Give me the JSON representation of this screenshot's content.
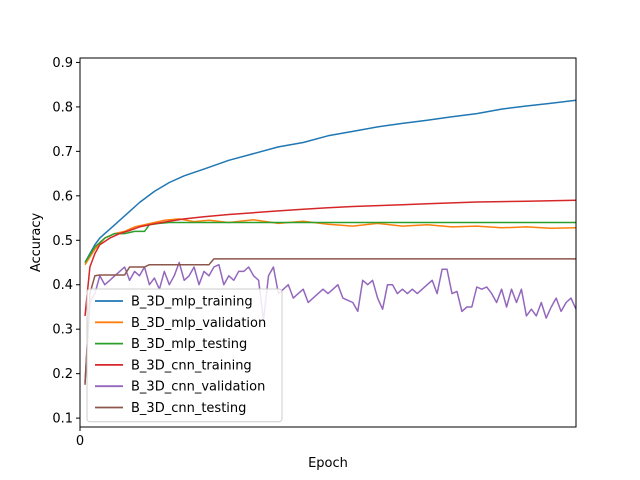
{
  "chart_data": {
    "type": "line",
    "title": "",
    "xlabel": "Epoch",
    "ylabel": "Accuracy",
    "xlim": [
      0,
      100
    ],
    "ylim": [
      0.08,
      0.91
    ],
    "x_ticks": [
      0
    ],
    "x_tick_labels": [
      "0"
    ],
    "y_ticks": [
      0.1,
      0.2,
      0.3,
      0.4,
      0.5,
      0.6,
      0.7,
      0.8,
      0.9
    ],
    "y_tick_labels": [
      "0.1",
      "0.2",
      "0.3",
      "0.4",
      "0.5",
      "0.6",
      "0.7",
      "0.8",
      "0.9"
    ],
    "grid": false,
    "legend_position": "lower-left",
    "series": [
      {
        "name": "B_3D_mlp_training",
        "color": "#1f77b4",
        "x": [
          1,
          2,
          3,
          4,
          5,
          6,
          8,
          10,
          12,
          15,
          18,
          21,
          25,
          30,
          35,
          40,
          45,
          50,
          55,
          60,
          65,
          70,
          75,
          80,
          85,
          90,
          95,
          100
        ],
        "y": [
          0.45,
          0.47,
          0.49,
          0.505,
          0.515,
          0.525,
          0.545,
          0.565,
          0.585,
          0.61,
          0.63,
          0.645,
          0.66,
          0.68,
          0.695,
          0.71,
          0.72,
          0.735,
          0.745,
          0.755,
          0.763,
          0.77,
          0.778,
          0.785,
          0.795,
          0.802,
          0.808,
          0.815
        ]
      },
      {
        "name": "B_3D_mlp_validation",
        "color": "#ff7f0e",
        "x": [
          1,
          3,
          5,
          7,
          9,
          11,
          13,
          15,
          17,
          20,
          23,
          26,
          30,
          35,
          40,
          45,
          50,
          55,
          60,
          65,
          70,
          75,
          80,
          85,
          90,
          95,
          100
        ],
        "y": [
          0.445,
          0.48,
          0.505,
          0.515,
          0.52,
          0.53,
          0.535,
          0.54,
          0.545,
          0.548,
          0.542,
          0.545,
          0.54,
          0.546,
          0.538,
          0.543,
          0.536,
          0.532,
          0.538,
          0.532,
          0.535,
          0.53,
          0.532,
          0.528,
          0.53,
          0.527,
          0.528
        ]
      },
      {
        "name": "B_3D_mlp_testing",
        "color": "#2ca02c",
        "x": [
          1,
          3,
          5,
          7,
          9,
          11,
          13,
          14,
          16,
          18,
          20,
          100
        ],
        "y": [
          0.45,
          0.485,
          0.505,
          0.515,
          0.515,
          0.52,
          0.52,
          0.535,
          0.538,
          0.54,
          0.54,
          0.54
        ]
      },
      {
        "name": "B_3D_cnn_training",
        "color": "#d62728",
        "x": [
          1,
          2,
          3,
          4,
          6,
          8,
          10,
          12,
          15,
          18,
          21,
          25,
          30,
          35,
          40,
          45,
          50,
          55,
          60,
          65,
          70,
          75,
          80,
          85,
          90,
          95,
          100
        ],
        "y": [
          0.33,
          0.44,
          0.47,
          0.49,
          0.505,
          0.515,
          0.522,
          0.53,
          0.537,
          0.543,
          0.548,
          0.553,
          0.558,
          0.562,
          0.566,
          0.57,
          0.573,
          0.576,
          0.578,
          0.58,
          0.582,
          0.584,
          0.586,
          0.587,
          0.588,
          0.589,
          0.59
        ]
      },
      {
        "name": "B_3D_cnn_validation",
        "color": "#9467bd",
        "x": [
          1,
          2,
          3,
          4,
          5,
          6,
          7,
          8,
          9,
          10,
          11,
          12,
          13,
          14,
          15,
          16,
          17,
          18,
          19,
          20,
          21,
          22,
          23,
          24,
          25,
          26,
          27,
          28,
          29,
          30,
          31,
          32,
          33,
          34,
          35,
          36,
          37,
          38,
          39,
          40,
          41,
          42,
          43,
          44,
          45,
          46,
          47,
          48,
          49,
          50,
          51,
          52,
          53,
          54,
          55,
          56,
          57,
          58,
          59,
          60,
          61,
          62,
          63,
          64,
          65,
          66,
          67,
          68,
          69,
          70,
          71,
          72,
          73,
          74,
          75,
          76,
          77,
          78,
          79,
          80,
          81,
          82,
          83,
          84,
          85,
          86,
          87,
          88,
          89,
          90,
          91,
          92,
          93,
          94,
          95,
          96,
          97,
          98,
          99,
          100
        ],
        "y": [
          0.18,
          0.36,
          0.38,
          0.42,
          0.4,
          0.41,
          0.42,
          0.43,
          0.44,
          0.41,
          0.43,
          0.42,
          0.44,
          0.4,
          0.415,
          0.39,
          0.43,
          0.4,
          0.42,
          0.45,
          0.41,
          0.42,
          0.44,
          0.4,
          0.43,
          0.42,
          0.44,
          0.445,
          0.4,
          0.42,
          0.41,
          0.43,
          0.43,
          0.44,
          0.42,
          0.41,
          0.32,
          0.42,
          0.44,
          0.38,
          0.39,
          0.4,
          0.37,
          0.38,
          0.39,
          0.36,
          0.37,
          0.38,
          0.39,
          0.38,
          0.39,
          0.4,
          0.37,
          0.365,
          0.36,
          0.34,
          0.41,
          0.4,
          0.41,
          0.37,
          0.345,
          0.4,
          0.4,
          0.38,
          0.39,
          0.38,
          0.39,
          0.38,
          0.39,
          0.4,
          0.41,
          0.38,
          0.435,
          0.435,
          0.38,
          0.385,
          0.34,
          0.35,
          0.35,
          0.395,
          0.39,
          0.395,
          0.38,
          0.36,
          0.39,
          0.35,
          0.39,
          0.36,
          0.39,
          0.33,
          0.345,
          0.33,
          0.36,
          0.325,
          0.35,
          0.37,
          0.34,
          0.36,
          0.37,
          0.345
        ]
      },
      {
        "name": "B_3D_cnn_testing",
        "color": "#8c564b",
        "x": [
          1,
          2,
          3,
          4,
          9,
          10,
          13,
          14,
          26,
          27,
          100
        ],
        "y": [
          0.175,
          0.38,
          0.42,
          0.422,
          0.422,
          0.44,
          0.44,
          0.445,
          0.445,
          0.458,
          0.458
        ]
      }
    ]
  }
}
